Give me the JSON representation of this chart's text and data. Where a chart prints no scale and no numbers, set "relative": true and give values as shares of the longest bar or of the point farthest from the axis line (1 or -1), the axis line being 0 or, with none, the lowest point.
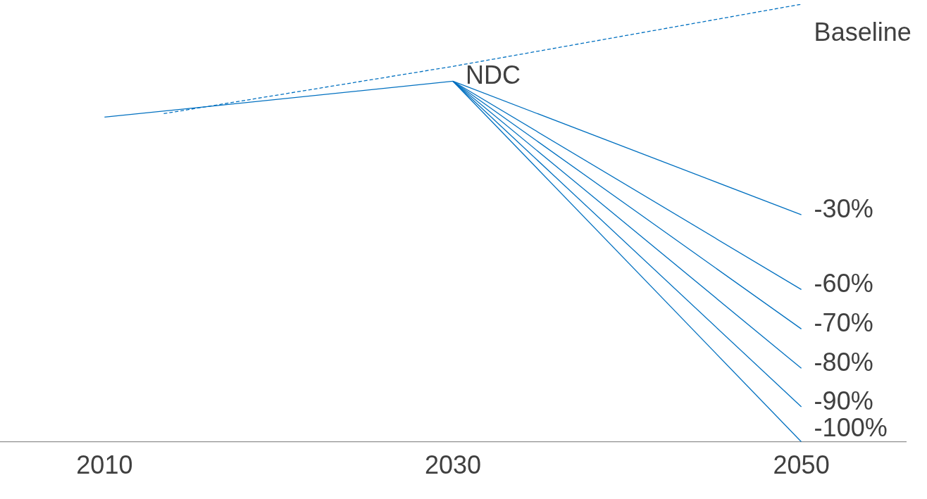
{
  "chart_data": {
    "type": "line",
    "relative": true,
    "xlim": [
      2004,
      2056
    ],
    "xticks": [
      2010,
      2030,
      2050
    ],
    "tick_labels": "x",
    "grid": false,
    "legend": false,
    "marker": "none",
    "series": [
      {
        "name": "Baseline",
        "color": "#0070c0",
        "line_style": "dashed",
        "x": [
          2013.4,
          2030,
          2050
        ],
        "values": [
          0.75,
          0.858,
          1
        ]
      },
      {
        "name": "NDC",
        "color": "#0070c0",
        "x": [
          2010,
          2030
        ],
        "values": [
          0.742,
          0.824
        ]
      },
      {
        "name": "-30%",
        "color": "#0070c0",
        "x": [
          2030,
          2050
        ],
        "values": [
          0.824,
          0.519
        ]
      },
      {
        "name": "-60%",
        "color": "#0070c0",
        "x": [
          2030,
          2050
        ],
        "values": [
          0.824,
          0.348
        ]
      },
      {
        "name": "-70%",
        "color": "#0070c0",
        "x": [
          2030,
          2050
        ],
        "values": [
          0.824,
          0.258
        ]
      },
      {
        "name": "-80%",
        "color": "#0070c0",
        "x": [
          2030,
          2050
        ],
        "values": [
          0.824,
          0.168
        ]
      },
      {
        "name": "-90%",
        "color": "#0070c0",
        "x": [
          2030,
          2050
        ],
        "values": [
          0.824,
          0.08
        ]
      },
      {
        "name": "-100%",
        "color": "#0070c0",
        "x": [
          2030,
          2050
        ],
        "values": [
          0.824,
          0
        ]
      }
    ]
  }
}
